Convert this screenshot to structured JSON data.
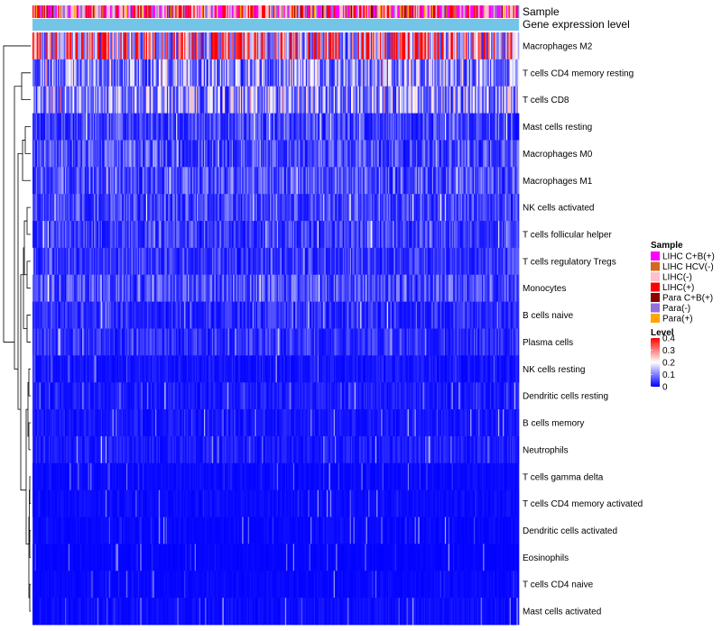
{
  "chart_data": {
    "type": "heatmap",
    "annotation_rows": [
      {
        "name": "Sample"
      },
      {
        "name": "Gene expression level"
      }
    ],
    "rows": [
      {
        "label": "Macrophages M2",
        "mean": 0.3
      },
      {
        "label": "T cells CD4 memory resting",
        "mean": 0.13
      },
      {
        "label": "T cells CD8",
        "mean": 0.14
      },
      {
        "label": "Mast cells resting",
        "mean": 0.06
      },
      {
        "label": "Macrophages M0",
        "mean": 0.07
      },
      {
        "label": "Macrophages M1",
        "mean": 0.07
      },
      {
        "label": "NK cells activated",
        "mean": 0.06
      },
      {
        "label": "T cells follicular helper",
        "mean": 0.055
      },
      {
        "label": "T cells regulatory  Tregs",
        "mean": 0.05
      },
      {
        "label": "Monocytes",
        "mean": 0.07
      },
      {
        "label": "B cells naive",
        "mean": 0.04
      },
      {
        "label": "Plasma cells",
        "mean": 0.045
      },
      {
        "label": "NK cells resting",
        "mean": 0.02
      },
      {
        "label": "Dendritic cells resting",
        "mean": 0.025
      },
      {
        "label": "B cells memory",
        "mean": 0.02
      },
      {
        "label": "Neutrophils",
        "mean": 0.025
      },
      {
        "label": "T cells gamma delta",
        "mean": 0.01
      },
      {
        "label": "T cells CD4 memory activated",
        "mean": 0.01
      },
      {
        "label": "Dendritic cells activated",
        "mean": 0.008
      },
      {
        "label": "Eosinophils",
        "mean": 0.005
      },
      {
        "label": "T cells CD4 naive",
        "mean": 0.008
      },
      {
        "label": "Mast cells activated",
        "mean": 0.012
      }
    ],
    "legend_sample": {
      "title": "Sample",
      "entries": [
        {
          "label": "LIHC C+B(+)",
          "color": "#ff00ff"
        },
        {
          "label": "LIHC HCV(-)",
          "color": "#d2691e"
        },
        {
          "label": "LIHC(-)",
          "color": "#ffc0cb"
        },
        {
          "label": "LIHC(+)",
          "color": "#ff0000"
        },
        {
          "label": "Para C+B(+)",
          "color": "#8b0000"
        },
        {
          "label": "Para(-)",
          "color": "#9370db"
        },
        {
          "label": "Para(+)",
          "color": "#ffa500"
        }
      ]
    },
    "legend_level": {
      "title": "Level",
      "range": [
        0,
        0.4
      ],
      "ticks": [
        "0.4",
        "0.3",
        "0.2",
        "0.1",
        "0"
      ],
      "colors": [
        "#0000ff",
        "#ffffff",
        "#ff0000"
      ]
    },
    "gene_expression_color": "#73c5e8",
    "n_samples": 420
  }
}
